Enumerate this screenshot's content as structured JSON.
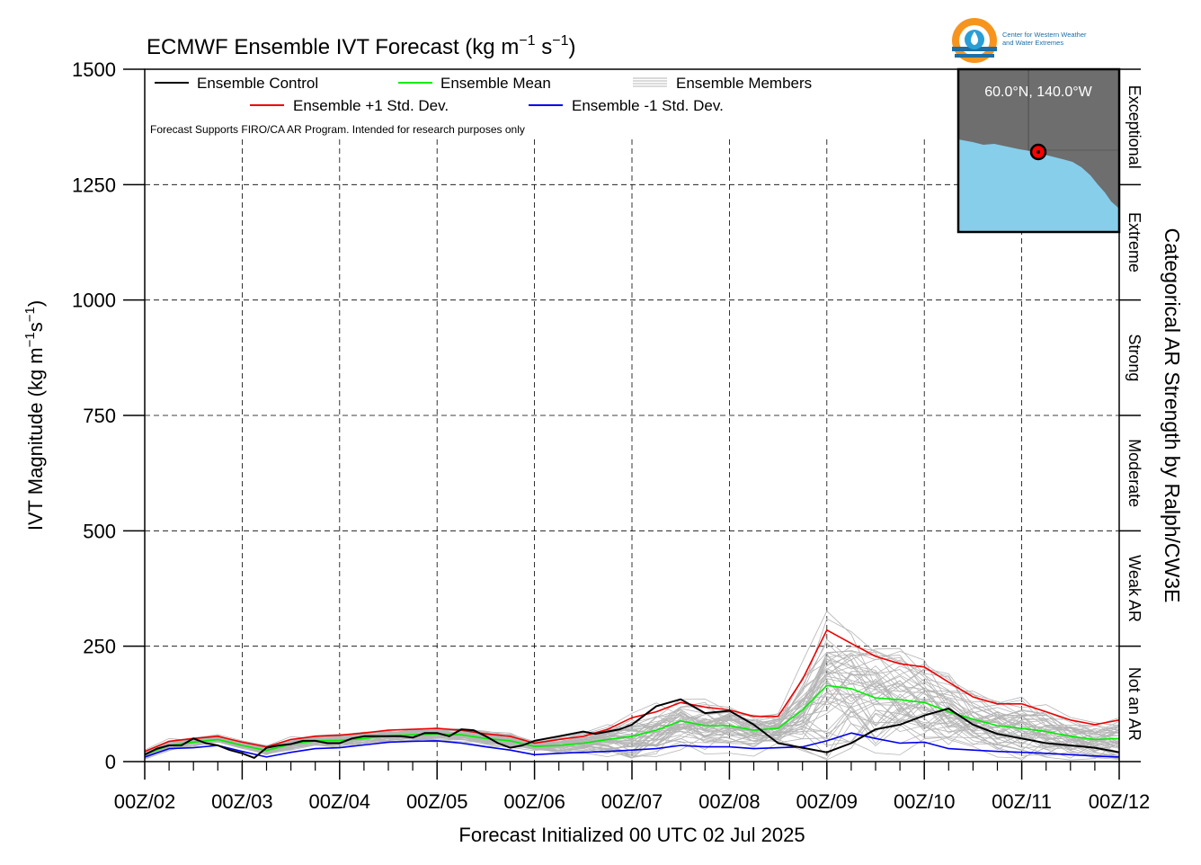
{
  "logo": {
    "line1": "Center for Western Weather",
    "line2": "and Water Extremes",
    "colors": {
      "orange": "#f7941d",
      "blue": "#1c6ea4",
      "teal": "#2a9fd6"
    }
  },
  "inset_map": {
    "label": "60.0°N, 140.0°W",
    "ocean_color": "#87ceeb",
    "land_color": "#6e6e6e",
    "marker_color": "#ff0000"
  },
  "chart_data": {
    "type": "line",
    "title": {
      "main": "ECMWF Ensemble IVT Forecast (kg m",
      "sup1": "−1",
      "mid": " s",
      "sup2": "−1",
      "end": ")"
    },
    "xlabel": "Forecast Initialized 00 UTC 02 Jul 2025",
    "ylabel": {
      "main": "IVT Magnitude (kg m",
      "sup1": "−1",
      "mid": "s",
      "sup2": "−1",
      "end": ")"
    },
    "right_label": "Categorical AR Strength by Ralph/CW3E",
    "note": "Forecast Supports FIRO/CA AR Program. Intended for research purposes only",
    "ylim": [
      0,
      1500
    ],
    "xlim": [
      0,
      240
    ],
    "y_ticks": [
      0,
      250,
      500,
      750,
      1000,
      1250,
      1500
    ],
    "x_ticks": [
      {
        "x": 0,
        "label": "00Z/02"
      },
      {
        "x": 24,
        "label": "00Z/03"
      },
      {
        "x": 48,
        "label": "00Z/04"
      },
      {
        "x": 72,
        "label": "00Z/05"
      },
      {
        "x": 96,
        "label": "00Z/06"
      },
      {
        "x": 120,
        "label": "00Z/07"
      },
      {
        "x": 144,
        "label": "00Z/08"
      },
      {
        "x": 168,
        "label": "00Z/09"
      },
      {
        "x": 192,
        "label": "00Z/10"
      },
      {
        "x": 216,
        "label": "00Z/11"
      },
      {
        "x": 240,
        "label": "00Z/12"
      }
    ],
    "categories": [
      {
        "label": "Not an AR",
        "from": 0,
        "to": 250
      },
      {
        "label": "Weak AR",
        "from": 250,
        "to": 500
      },
      {
        "label": "Moderate",
        "from": 500,
        "to": 750
      },
      {
        "label": "Strong",
        "from": 750,
        "to": 1000
      },
      {
        "label": "Extreme",
        "from": 1000,
        "to": 1250
      },
      {
        "label": "Exceptional",
        "from": 1250,
        "to": 1500
      }
    ],
    "legend": {
      "control": "Ensemble Control",
      "mean": "Ensemble Mean",
      "members": "Ensemble Members",
      "plus": "Ensemble +1 Std. Dev.",
      "minus": "Ensemble -1 Std. Dev."
    },
    "grid": true,
    "colors": {
      "control": "#000000",
      "mean": "#00ee00",
      "plus": "#ee0000",
      "minus": "#0000ee",
      "members": "#b4b4b4"
    },
    "series": [
      {
        "key": "control",
        "x": [
          0,
          3,
          6,
          9,
          12,
          15,
          18,
          21,
          24,
          27,
          30,
          33,
          36,
          39,
          42,
          45,
          48,
          51,
          54,
          57,
          60,
          63,
          66,
          69,
          72,
          75,
          78,
          81,
          84,
          87,
          90,
          93,
          96,
          99,
          102,
          105,
          108,
          111,
          114,
          117,
          120,
          126,
          132,
          138,
          144,
          150,
          156,
          162,
          168,
          174,
          180,
          186,
          192,
          198,
          204,
          210,
          216,
          222,
          228,
          234,
          240
        ],
        "values": [
          15,
          28,
          35,
          35,
          50,
          40,
          35,
          25,
          18,
          8,
          30,
          35,
          38,
          45,
          45,
          40,
          40,
          50,
          55,
          55,
          55,
          55,
          52,
          62,
          62,
          55,
          70,
          68,
          55,
          40,
          30,
          35,
          45,
          50,
          55,
          60,
          65,
          60,
          65,
          70,
          80,
          120,
          135,
          105,
          110,
          80,
          40,
          30,
          20,
          40,
          70,
          80,
          100,
          115,
          80,
          60,
          50,
          40,
          35,
          30,
          20
        ]
      },
      {
        "key": "mean",
        "x": [
          0,
          6,
          12,
          18,
          24,
          30,
          36,
          42,
          48,
          54,
          60,
          66,
          72,
          78,
          84,
          90,
          96,
          102,
          108,
          114,
          120,
          126,
          132,
          138,
          144,
          150,
          156,
          162,
          168,
          174,
          180,
          186,
          192,
          198,
          204,
          210,
          216,
          222,
          228,
          234,
          240
        ],
        "values": [
          15,
          35,
          42,
          48,
          35,
          24,
          38,
          45,
          46,
          50,
          56,
          58,
          60,
          58,
          50,
          45,
          33,
          35,
          40,
          48,
          55,
          68,
          88,
          78,
          78,
          68,
          72,
          112,
          165,
          158,
          138,
          134,
          128,
          108,
          92,
          78,
          72,
          65,
          55,
          48,
          50
        ]
      },
      {
        "key": "plus",
        "x": [
          0,
          6,
          12,
          18,
          24,
          30,
          36,
          42,
          48,
          54,
          60,
          66,
          72,
          78,
          84,
          90,
          96,
          102,
          108,
          114,
          120,
          126,
          132,
          138,
          144,
          150,
          156,
          162,
          168,
          174,
          180,
          186,
          192,
          198,
          204,
          210,
          216,
          222,
          228,
          234,
          240
        ],
        "values": [
          22,
          44,
          50,
          55,
          42,
          32,
          48,
          55,
          57,
          62,
          68,
          70,
          72,
          68,
          60,
          55,
          40,
          48,
          55,
          70,
          95,
          108,
          128,
          118,
          112,
          98,
          98,
          178,
          285,
          256,
          228,
          212,
          205,
          172,
          140,
          125,
          125,
          108,
          90,
          80,
          90
        ]
      },
      {
        "key": "minus",
        "x": [
          0,
          6,
          12,
          18,
          24,
          30,
          36,
          42,
          48,
          54,
          60,
          66,
          72,
          78,
          84,
          90,
          96,
          102,
          108,
          114,
          120,
          126,
          132,
          138,
          144,
          150,
          156,
          162,
          168,
          174,
          180,
          186,
          192,
          198,
          204,
          210,
          216,
          222,
          228,
          234,
          240
        ],
        "values": [
          10,
          28,
          30,
          35,
          22,
          10,
          20,
          28,
          30,
          36,
          42,
          44,
          45,
          40,
          32,
          25,
          15,
          18,
          20,
          22,
          25,
          28,
          35,
          32,
          32,
          28,
          30,
          32,
          45,
          62,
          50,
          40,
          42,
          28,
          25,
          22,
          20,
          18,
          15,
          12,
          10
        ]
      }
    ],
    "members_note": "approximately 50 thin grey member traces lying between about 5 and 450 kg m-1 s-1"
  }
}
